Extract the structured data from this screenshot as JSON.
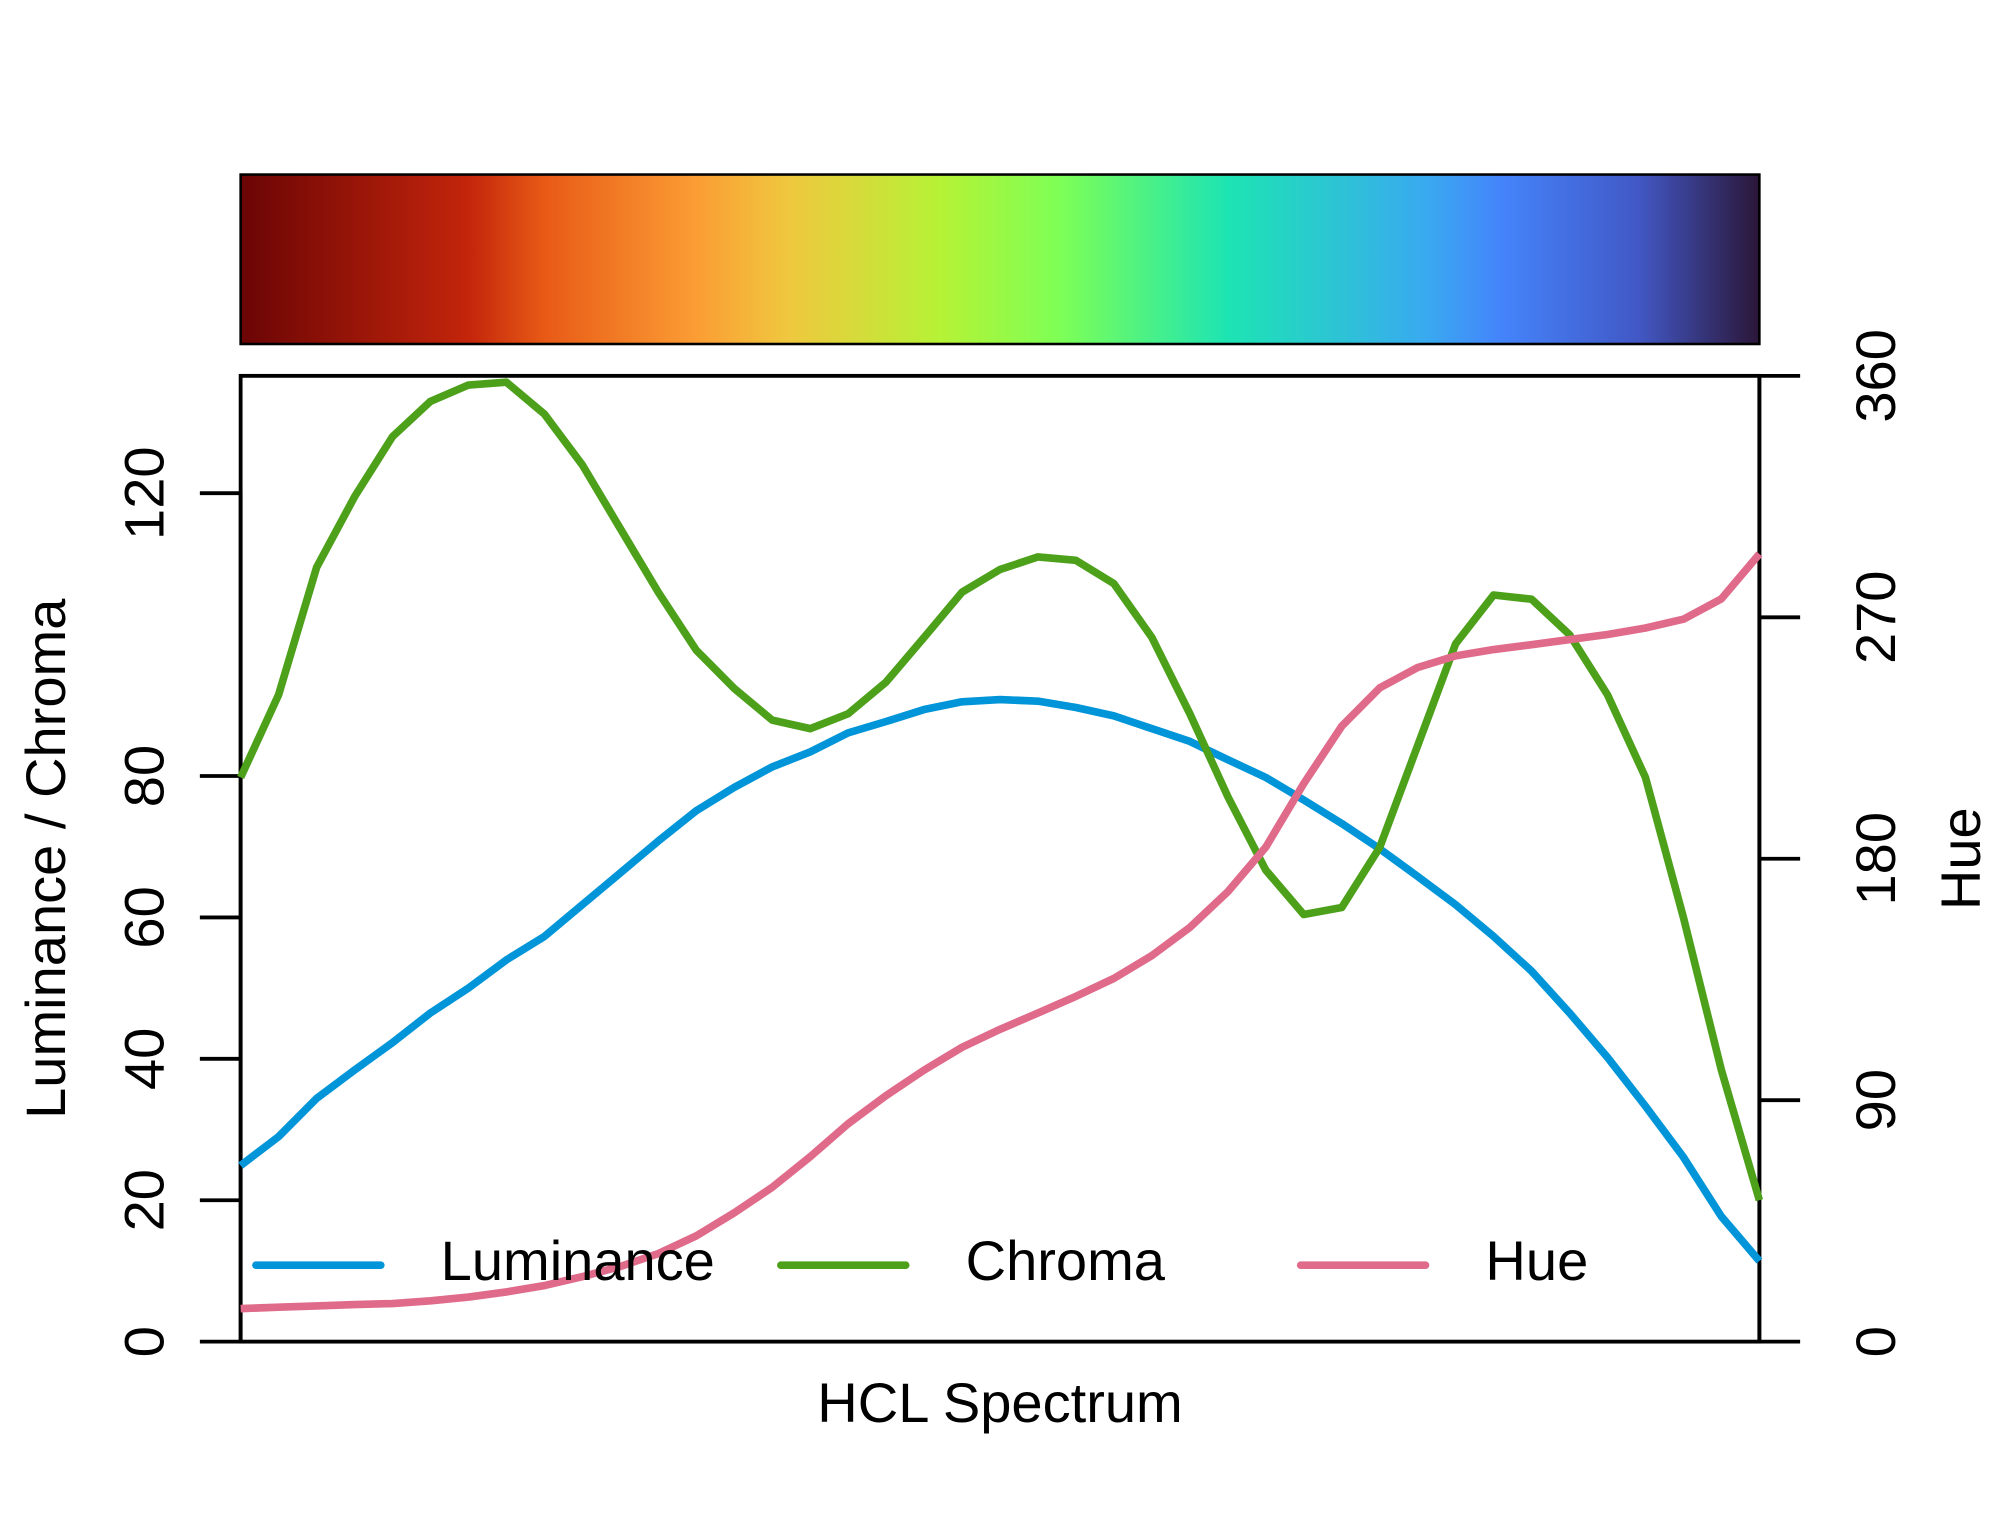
{
  "chart_data": {
    "type": "line",
    "xlabel": "HCL Spectrum",
    "ylabel": "Luminance / Chroma",
    "y2label": "Hue",
    "categories": [
      null,
      null,
      null,
      null,
      null,
      null,
      null,
      null,
      null,
      null,
      null,
      null,
      null,
      null,
      null,
      null,
      null,
      null,
      null,
      null,
      null,
      null,
      null,
      null,
      null,
      null,
      null,
      null,
      null,
      null,
      null,
      null,
      null,
      null,
      null,
      null,
      null,
      null,
      null,
      null,
      null
    ],
    "ylim": [
      0,
      136.6
    ],
    "yticks": [
      0,
      20,
      40,
      60,
      80,
      120
    ],
    "y2lim": [
      0,
      360
    ],
    "y2ticks": [
      0,
      90,
      180,
      270,
      360
    ],
    "legend": "bottom",
    "series": [
      {
        "name": "Luminance",
        "color": "#0095d8",
        "values": [
          24.9,
          29,
          34.4,
          38.4,
          42.3,
          46.5,
          50,
          54,
          57.3,
          61.8,
          66.3,
          70.8,
          75.1,
          78.4,
          81.3,
          83.4,
          86.1,
          87.7,
          89.4,
          90.5,
          90.8,
          90.6,
          89.7,
          88.5,
          86.7,
          84.9,
          82.3,
          79.8,
          76.6,
          73.3,
          69.7,
          65.8,
          61.8,
          57.3,
          52.4,
          46.5,
          40.2,
          33.3,
          26.1,
          17.7,
          11.4
        ]
      },
      {
        "name": "Chroma",
        "color": "#4da01a",
        "values": [
          79.8,
          91.5,
          109.5,
          119.5,
          128,
          133,
          135.3,
          135.7,
          131.2,
          124,
          115,
          106,
          97.8,
          92.4,
          87.9,
          86.7,
          88.8,
          93.3,
          99.6,
          106,
          109.2,
          111,
          110.5,
          107.2,
          99.6,
          88.8,
          77.1,
          66.7,
          60.4,
          61.4,
          69.9,
          84.3,
          98.7,
          105.6,
          105,
          100,
          91.5,
          79.8,
          60,
          38.4,
          20
        ]
      },
      {
        "name": "Hue",
        "color": "#e06a8a",
        "axis": "y2",
        "values": [
          12.3,
          12.8,
          13.3,
          13.8,
          14.2,
          15.2,
          16.6,
          18.5,
          20.9,
          24.2,
          28,
          32.8,
          39.4,
          48,
          57.5,
          68.9,
          81.2,
          91.7,
          101.2,
          109.7,
          116.4,
          122.5,
          128.7,
          135.4,
          143.9,
          154.4,
          167.7,
          184.3,
          208,
          229.4,
          243.7,
          251.3,
          255.6,
          258,
          259.8,
          261.7,
          263.6,
          266,
          269.3,
          276.9,
          293.6
        ]
      }
    ]
  }
}
